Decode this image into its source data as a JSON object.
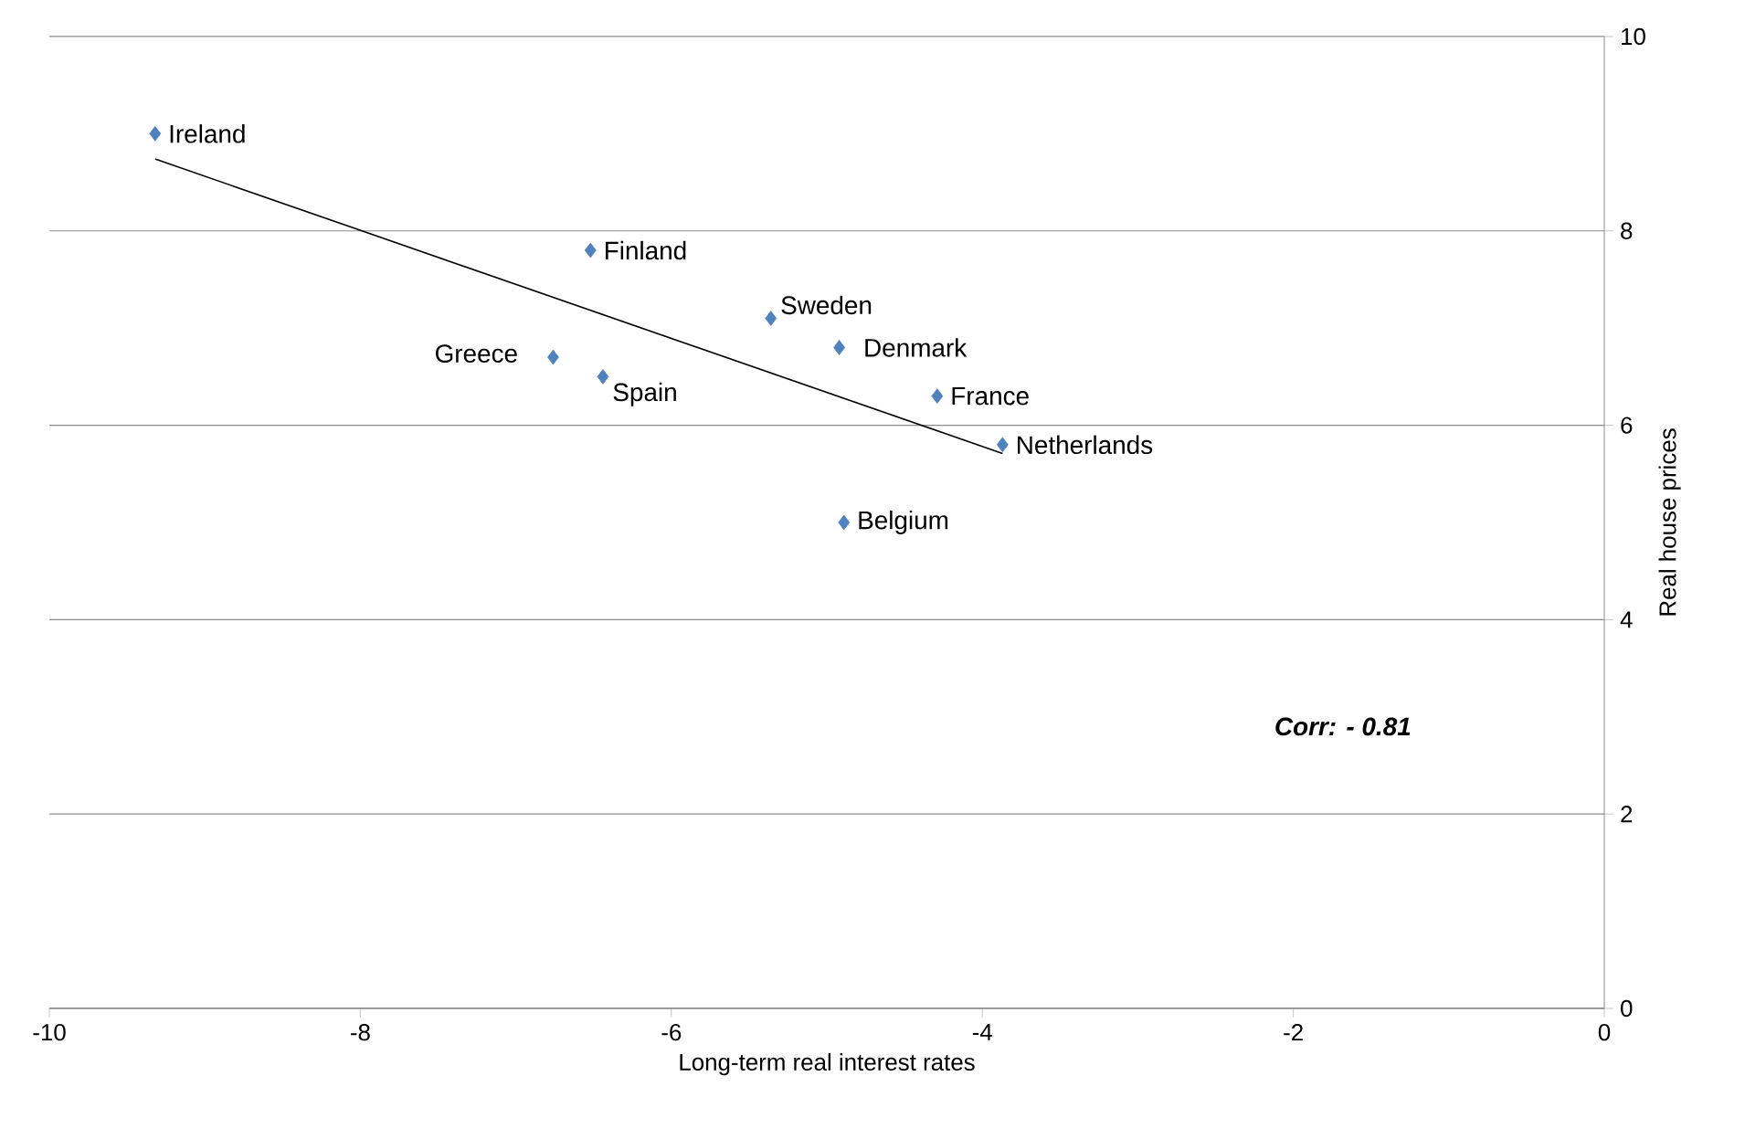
{
  "chart_data": {
    "type": "scatter",
    "xlabel": "Long-term real interest rates",
    "ylabel": "Real house prices",
    "xlim": [
      -10,
      0
    ],
    "xticks": [
      -10,
      -8,
      -6,
      -4,
      -2,
      0
    ],
    "ylim": [
      0,
      10
    ],
    "yticks": [
      0,
      2,
      4,
      6,
      8,
      10
    ],
    "grid": "y",
    "series": [
      {
        "color": "#4f81bd",
        "marker": "diamond",
        "x": [
          -9.32,
          -6.52,
          -5.36,
          -4.92,
          -4.29,
          -3.87,
          -6.76,
          -6.44,
          -4.89
        ],
        "values": [
          9.0,
          7.8,
          7.1,
          6.8,
          6.3,
          5.8,
          6.7,
          6.5,
          5.0
        ]
      },
      {
        "type": "line",
        "color": "#000000",
        "marker": "none",
        "x": [
          -9.32,
          -3.87
        ],
        "values": [
          8.74,
          5.71
        ]
      }
    ],
    "annotations": [
      {
        "text": "Ireland",
        "x": -9.32,
        "y": 9.0
      },
      {
        "text": "Finland",
        "x": -6.52,
        "y": 7.8
      },
      {
        "text": "Sweden",
        "x": -5.36,
        "y": 7.1
      },
      {
        "text": "Denmark",
        "x": -4.92,
        "y": 6.8
      },
      {
        "text": "France",
        "x": -4.29,
        "y": 6.3
      },
      {
        "text": "Netherlands",
        "x": -3.87,
        "y": 5.8
      },
      {
        "text": "Greece",
        "x": -6.76,
        "y": 6.7
      },
      {
        "text": "Spain",
        "x": -6.44,
        "y": 6.5
      },
      {
        "text": "Belgium",
        "x": -4.89,
        "y": 5.0
      },
      "Corr: - 0.81"
    ]
  }
}
